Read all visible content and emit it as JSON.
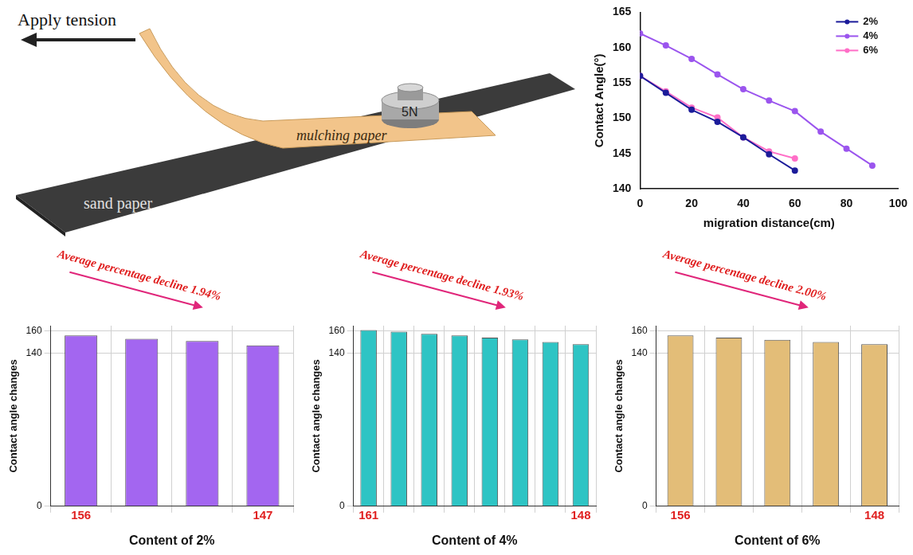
{
  "diagram": {
    "arrow_label": "Apply tension",
    "paper_label": "mulching paper",
    "weight_label": "5N",
    "surface_label": "sand paper"
  },
  "chart_data": [
    {
      "type": "line",
      "x_label": "migration distance(cm)",
      "y_label": "Contact Angle(°)",
      "xlim": [
        0,
        100
      ],
      "xticks": [
        0,
        20,
        40,
        60,
        80,
        100
      ],
      "ylim": [
        140,
        165
      ],
      "yticks": [
        140,
        145,
        150,
        155,
        160,
        165
      ],
      "grid": false,
      "legend": "upper right",
      "series": [
        {
          "name": "2%",
          "color": "#1c1c9a",
          "marker": "circle",
          "x": [
            0,
            10,
            20,
            30,
            40,
            50,
            60
          ],
          "values": [
            156,
            153.6,
            151.2,
            149.5,
            147.3,
            144.9,
            142.6
          ]
        },
        {
          "name": "4%",
          "color": "#9b55ee",
          "marker": "circle",
          "x": [
            0,
            10,
            20,
            30,
            40,
            50,
            60,
            70,
            80,
            90
          ],
          "values": [
            162,
            160.3,
            158.4,
            156.2,
            154.1,
            152.5,
            151.0,
            148.1,
            145.7,
            143.3
          ]
        },
        {
          "name": "6%",
          "color": "#ff6ec7",
          "marker": "circle",
          "x": [
            0,
            10,
            20,
            30,
            40,
            50,
            60
          ],
          "values": [
            156,
            153.8,
            151.5,
            150.1,
            147.3,
            145.3,
            144.3
          ]
        }
      ]
    },
    {
      "type": "bar",
      "x_label": "Content of 2%",
      "y_label": "Contact angle changes",
      "annotation": "Average percentage decline 1.94%",
      "categories": [
        null,
        null,
        null,
        null
      ],
      "values": [
        156,
        153,
        151,
        147
      ],
      "value_labels": [
        "156",
        null,
        null,
        "147"
      ],
      "color": "#a366f0",
      "ylim": [
        0,
        165
      ],
      "yticks": [
        0,
        140,
        160
      ],
      "grid": true,
      "tick_labels": "y"
    },
    {
      "type": "bar",
      "x_label": "Content of 4%",
      "y_label": "Contact angle changes",
      "annotation": "Average percentage decline 1.93%",
      "categories": [
        null,
        null,
        null,
        null,
        null,
        null,
        null,
        null
      ],
      "values": [
        161,
        159.5,
        157.5,
        156,
        154,
        152.5,
        150,
        148
      ],
      "value_labels": [
        "161",
        null,
        null,
        null,
        null,
        null,
        null,
        "148"
      ],
      "color": "#2ec4c4",
      "ylim": [
        0,
        165
      ],
      "yticks": [
        0,
        140,
        160
      ],
      "grid": true,
      "tick_labels": "y"
    },
    {
      "type": "bar",
      "x_label": "Content of 6%",
      "y_label": "Contact angle changes",
      "annotation": "Average percentage decline 2.00%",
      "categories": [
        null,
        null,
        null,
        null,
        null
      ],
      "values": [
        156,
        154,
        152,
        150,
        148
      ],
      "value_labels": [
        "156",
        null,
        null,
        null,
        "148"
      ],
      "color": "#e3bd78",
      "ylim": [
        0,
        165
      ],
      "yticks": [
        0,
        140,
        160
      ],
      "grid": true,
      "tick_labels": "y"
    }
  ]
}
